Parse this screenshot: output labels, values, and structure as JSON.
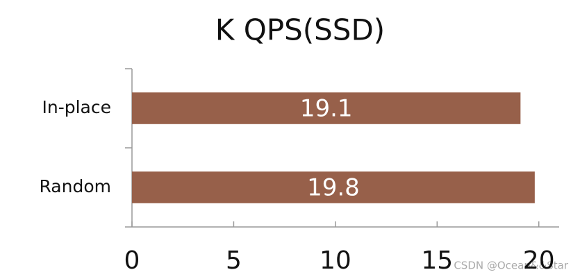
{
  "chart_data": {
    "type": "bar",
    "orientation": "horizontal",
    "title": "K QPS(SSD)",
    "categories": [
      "In-place",
      "Random"
    ],
    "values": [
      19.1,
      19.8
    ],
    "color": "#97604a",
    "xlim": [
      0,
      21
    ],
    "xticks": [
      0,
      5,
      10,
      15,
      20
    ],
    "grid": false
  },
  "watermark": "CSDN @Ocean&&Star"
}
